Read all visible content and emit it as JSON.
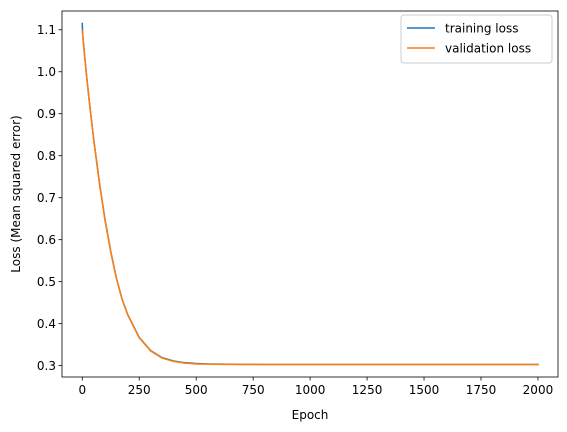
{
  "chart_data": {
    "type": "line",
    "title": "",
    "xlabel": "Epoch",
    "ylabel": "Loss (Mean squared error)",
    "xlim": [
      -89,
      2088
    ],
    "ylim": [
      0.2729,
      1.1447
    ],
    "xticks": [
      0,
      250,
      500,
      750,
      1000,
      1250,
      1500,
      1750,
      2000
    ],
    "yticks": [
      0.3,
      0.4,
      0.5,
      0.6,
      0.7,
      0.8,
      0.9,
      1.0,
      1.1
    ],
    "ytick_labels": [
      "0.3",
      "0.4",
      "0.5",
      "0.6",
      "0.7",
      "0.8",
      "0.9",
      "1.0",
      "1.1"
    ],
    "grid": false,
    "legend_position": "top-right",
    "x": [
      0,
      1,
      2,
      5,
      10,
      20,
      30,
      50,
      75,
      100,
      125,
      150,
      175,
      200,
      250,
      300,
      350,
      400,
      450,
      500,
      550,
      600,
      700,
      800,
      900,
      1000,
      1250,
      1500,
      1750,
      2000
    ],
    "series": [
      {
        "name": "training loss",
        "color": "#1f77b4",
        "values": [
          1.115,
          1.098,
          1.088,
          1.07,
          1.04,
          0.985,
          0.934,
          0.84,
          0.737,
          0.647,
          0.572,
          0.508,
          0.458,
          0.421,
          0.367,
          0.336,
          0.319,
          0.311,
          0.307,
          0.305,
          0.304,
          0.3035,
          0.303,
          0.3028,
          0.3027,
          0.3027,
          0.3027,
          0.3027,
          0.3027,
          0.3027
        ]
      },
      {
        "name": "validation loss",
        "color": "#ff7f0e",
        "values": [
          1.098,
          1.093,
          1.085,
          1.068,
          1.038,
          0.983,
          0.932,
          0.838,
          0.735,
          0.645,
          0.57,
          0.507,
          0.457,
          0.42,
          0.366,
          0.335,
          0.318,
          0.31,
          0.306,
          0.304,
          0.3035,
          0.303,
          0.3028,
          0.3027,
          0.3027,
          0.3027,
          0.3027,
          0.3027,
          0.3027,
          0.3027
        ]
      }
    ]
  }
}
